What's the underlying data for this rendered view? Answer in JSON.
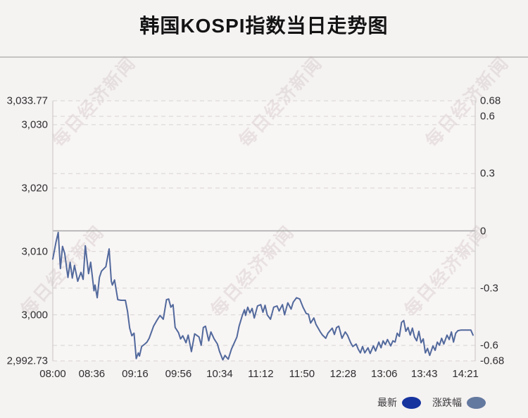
{
  "title": "韩国KOSPI指数当日走势图",
  "watermark": {
    "text": "每日经济新闻"
  },
  "legend": {
    "items": [
      {
        "label": "最新",
        "color": "#16339e"
      },
      {
        "label": "涨跌幅",
        "color": "#64799f"
      }
    ]
  },
  "colors": {
    "background": "#f5f2f2",
    "plot_background": "#f8f5f5",
    "line": "#52699c",
    "grid": "#d9d4d4",
    "zero_line": "#a6a6a6",
    "axis_border": "#c8c4c4",
    "divider": "#c6c3c3",
    "title_text": "#141414",
    "tick_text": "#2e2e2e",
    "watermark": "rgba(186,168,168,0.25)"
  },
  "chart_data": {
    "type": "line",
    "title": "韩国KOSPI指数当日走势图",
    "prev_close": 3013.25,
    "grid": "horizontal-dashed",
    "legend_position": "bottom-right",
    "x_axis": {
      "range": [
        "08:00",
        "14:30"
      ],
      "ticks": [
        "08:00",
        "08:36",
        "09:16",
        "09:56",
        "10:34",
        "11:12",
        "11:50",
        "12:28",
        "13:06",
        "13:43",
        "14:21"
      ]
    },
    "y_left": {
      "min": 2992.73,
      "max": 3033.77,
      "ticks": [
        {
          "label": "3,033.77",
          "value": 3033.77
        },
        {
          "label": "3,030",
          "value": 3030
        },
        {
          "label": "3,020",
          "value": 3020
        },
        {
          "label": "3,010",
          "value": 3010
        },
        {
          "label": "3,000",
          "value": 3000
        },
        {
          "label": "2,992.73",
          "value": 2992.73
        }
      ]
    },
    "y_right": {
      "min": -0.68,
      "max": 0.68,
      "unit": "%",
      "ticks": [
        {
          "label": "0.68",
          "value": 0.68
        },
        {
          "label": "0.6",
          "value": 0.6
        },
        {
          "label": "0.3",
          "value": 0.3
        },
        {
          "label": "0",
          "value": 0
        },
        {
          "label": "-0.3",
          "value": -0.3
        },
        {
          "label": "-0.6",
          "value": -0.6
        },
        {
          "label": "-0.68",
          "value": -0.68
        }
      ]
    },
    "series": [
      {
        "name": "最新",
        "color": "#52699c",
        "axis": "left",
        "points": [
          [
            "08:00",
            3008.8
          ],
          [
            "08:03",
            3011.5
          ],
          [
            "08:05",
            3013.0
          ],
          [
            "08:07",
            3007.3
          ],
          [
            "08:09",
            3010.8
          ],
          [
            "08:11",
            3009.7
          ],
          [
            "08:14",
            3005.9
          ],
          [
            "08:16",
            3008.3
          ],
          [
            "08:18",
            3005.8
          ],
          [
            "08:20",
            3007.8
          ],
          [
            "08:23",
            3005.3
          ],
          [
            "08:26",
            3006.7
          ],
          [
            "08:28",
            3005.6
          ],
          [
            "08:30",
            3010.9
          ],
          [
            "08:33",
            3006.5
          ],
          [
            "08:35",
            3008.3
          ],
          [
            "08:38",
            3003.8
          ],
          [
            "08:39",
            3004.7
          ],
          [
            "08:41",
            3002.7
          ],
          [
            "08:43",
            3005.9
          ],
          [
            "08:45",
            3006.9
          ],
          [
            "08:49",
            3007.6
          ],
          [
            "08:52",
            3010.4
          ],
          [
            "08:54",
            3005.3
          ],
          [
            "08:55",
            3004.7
          ],
          [
            "08:57",
            3005.5
          ],
          [
            "09:00",
            3002.4
          ],
          [
            "09:03",
            3002.3
          ],
          [
            "09:07",
            3002.3
          ],
          [
            "09:09",
            3000.5
          ],
          [
            "09:11",
            2997.9
          ],
          [
            "09:13",
            2996.7
          ],
          [
            "09:15",
            2997.1
          ],
          [
            "09:17",
            2993.1
          ],
          [
            "09:19",
            2994.0
          ],
          [
            "09:20",
            2993.5
          ],
          [
            "09:22",
            2995.0
          ],
          [
            "09:25",
            2995.4
          ],
          [
            "09:27",
            2995.7
          ],
          [
            "09:29",
            2996.3
          ],
          [
            "09:33",
            2998.2
          ],
          [
            "09:36",
            2999.1
          ],
          [
            "09:39",
            2999.9
          ],
          [
            "09:42",
            2999.3
          ],
          [
            "09:45",
            3002.4
          ],
          [
            "09:47",
            3002.5
          ],
          [
            "09:49",
            3001.2
          ],
          [
            "09:51",
            3001.6
          ],
          [
            "09:53",
            2998.0
          ],
          [
            "09:56",
            2997.2
          ],
          [
            "09:58",
            2996.2
          ],
          [
            "10:00",
            2996.7
          ],
          [
            "10:03",
            2995.6
          ],
          [
            "10:05",
            2996.8
          ],
          [
            "10:08",
            2994.2
          ],
          [
            "10:11",
            2997.0
          ],
          [
            "10:15",
            2996.5
          ],
          [
            "10:17",
            2995.2
          ],
          [
            "10:19",
            2998.0
          ],
          [
            "10:21",
            2998.2
          ],
          [
            "10:24",
            2995.9
          ],
          [
            "10:26",
            2997.3
          ],
          [
            "10:29",
            2996.2
          ],
          [
            "10:32",
            2995.4
          ],
          [
            "10:34",
            2994.2
          ],
          [
            "10:37",
            2992.9
          ],
          [
            "10:39",
            2993.6
          ],
          [
            "10:42",
            2993.0
          ],
          [
            "10:45",
            2994.6
          ],
          [
            "10:50",
            2996.5
          ],
          [
            "10:52",
            2998.2
          ],
          [
            "10:55",
            2999.9
          ],
          [
            "10:57",
            3000.8
          ],
          [
            "10:58",
            2999.9
          ],
          [
            "11:00",
            3001.2
          ],
          [
            "11:02",
            3000.3
          ],
          [
            "11:04",
            3001.0
          ],
          [
            "11:06",
            2999.5
          ],
          [
            "11:09",
            3001.4
          ],
          [
            "11:12",
            3001.6
          ],
          [
            "11:14",
            3000.4
          ],
          [
            "11:16",
            3001.5
          ],
          [
            "11:18",
            3000.0
          ],
          [
            "11:21",
            2999.3
          ],
          [
            "11:24",
            3001.2
          ],
          [
            "11:27",
            3001.4
          ],
          [
            "11:29",
            3000.6
          ],
          [
            "11:32",
            3001.6
          ],
          [
            "11:34",
            3000.0
          ],
          [
            "11:37",
            3001.9
          ],
          [
            "11:40",
            3000.9
          ],
          [
            "11:42",
            3002.0
          ],
          [
            "11:45",
            3002.7
          ],
          [
            "11:48",
            3002.5
          ],
          [
            "11:51",
            3001.2
          ],
          [
            "11:54",
            3000.2
          ],
          [
            "11:56",
            3000.1
          ],
          [
            "11:58",
            2998.7
          ],
          [
            "12:01",
            2999.5
          ],
          [
            "12:03",
            2998.5
          ],
          [
            "12:07",
            2997.3
          ],
          [
            "12:09",
            2996.8
          ],
          [
            "12:12",
            2996.3
          ],
          [
            "12:14",
            2997.1
          ],
          [
            "12:18",
            2997.9
          ],
          [
            "12:20",
            2996.9
          ],
          [
            "12:22",
            2998.0
          ],
          [
            "12:24",
            2998.2
          ],
          [
            "12:27",
            2996.3
          ],
          [
            "12:30",
            2997.3
          ],
          [
            "12:32",
            2996.8
          ],
          [
            "12:35",
            2995.6
          ],
          [
            "12:37",
            2995.0
          ],
          [
            "12:40",
            2995.4
          ],
          [
            "12:42",
            2994.6
          ],
          [
            "12:44",
            2994.0
          ],
          [
            "12:46",
            2995.0
          ],
          [
            "12:48",
            2994.0
          ],
          [
            "12:51",
            2994.8
          ],
          [
            "12:53",
            2993.9
          ],
          [
            "12:56",
            2995.1
          ],
          [
            "12:58",
            2994.3
          ],
          [
            "13:01",
            2995.7
          ],
          [
            "13:03",
            2994.8
          ],
          [
            "13:05",
            2995.9
          ],
          [
            "13:07",
            2995.3
          ],
          [
            "13:09",
            2996.1
          ],
          [
            "13:12",
            2995.1
          ],
          [
            "13:14",
            2995.9
          ],
          [
            "13:16",
            2995.7
          ],
          [
            "13:18",
            2997.1
          ],
          [
            "13:20",
            2996.6
          ],
          [
            "13:22",
            2998.8
          ],
          [
            "13:24",
            2999.1
          ],
          [
            "13:26",
            2997.4
          ],
          [
            "13:28",
            2998.0
          ],
          [
            "13:30",
            2996.8
          ],
          [
            "13:32",
            2997.9
          ],
          [
            "13:34",
            2996.5
          ],
          [
            "13:36",
            2995.9
          ],
          [
            "13:38",
            2997.4
          ],
          [
            "13:40",
            2995.6
          ],
          [
            "13:42",
            2996.2
          ],
          [
            "13:44",
            2994.0
          ],
          [
            "13:46",
            2994.7
          ],
          [
            "13:48",
            2993.6
          ],
          [
            "13:51",
            2995.1
          ],
          [
            "13:53",
            2994.4
          ],
          [
            "13:55",
            2995.7
          ],
          [
            "13:57",
            2995.2
          ],
          [
            "13:59",
            2996.3
          ],
          [
            "14:01",
            2995.4
          ],
          [
            "14:04",
            2996.8
          ],
          [
            "14:06",
            2996.1
          ],
          [
            "14:08",
            2997.3
          ],
          [
            "14:10",
            2995.7
          ],
          [
            "14:12",
            2997.1
          ],
          [
            "14:14",
            2997.5
          ],
          [
            "14:17",
            2997.6
          ],
          [
            "14:20",
            2997.6
          ],
          [
            "14:23",
            2997.6
          ],
          [
            "14:26",
            2997.6
          ],
          [
            "14:28",
            2996.8
          ]
        ]
      },
      {
        "name": "涨跌幅",
        "color": "#64799f",
        "axis": "right",
        "derived_from": "最新"
      }
    ]
  }
}
